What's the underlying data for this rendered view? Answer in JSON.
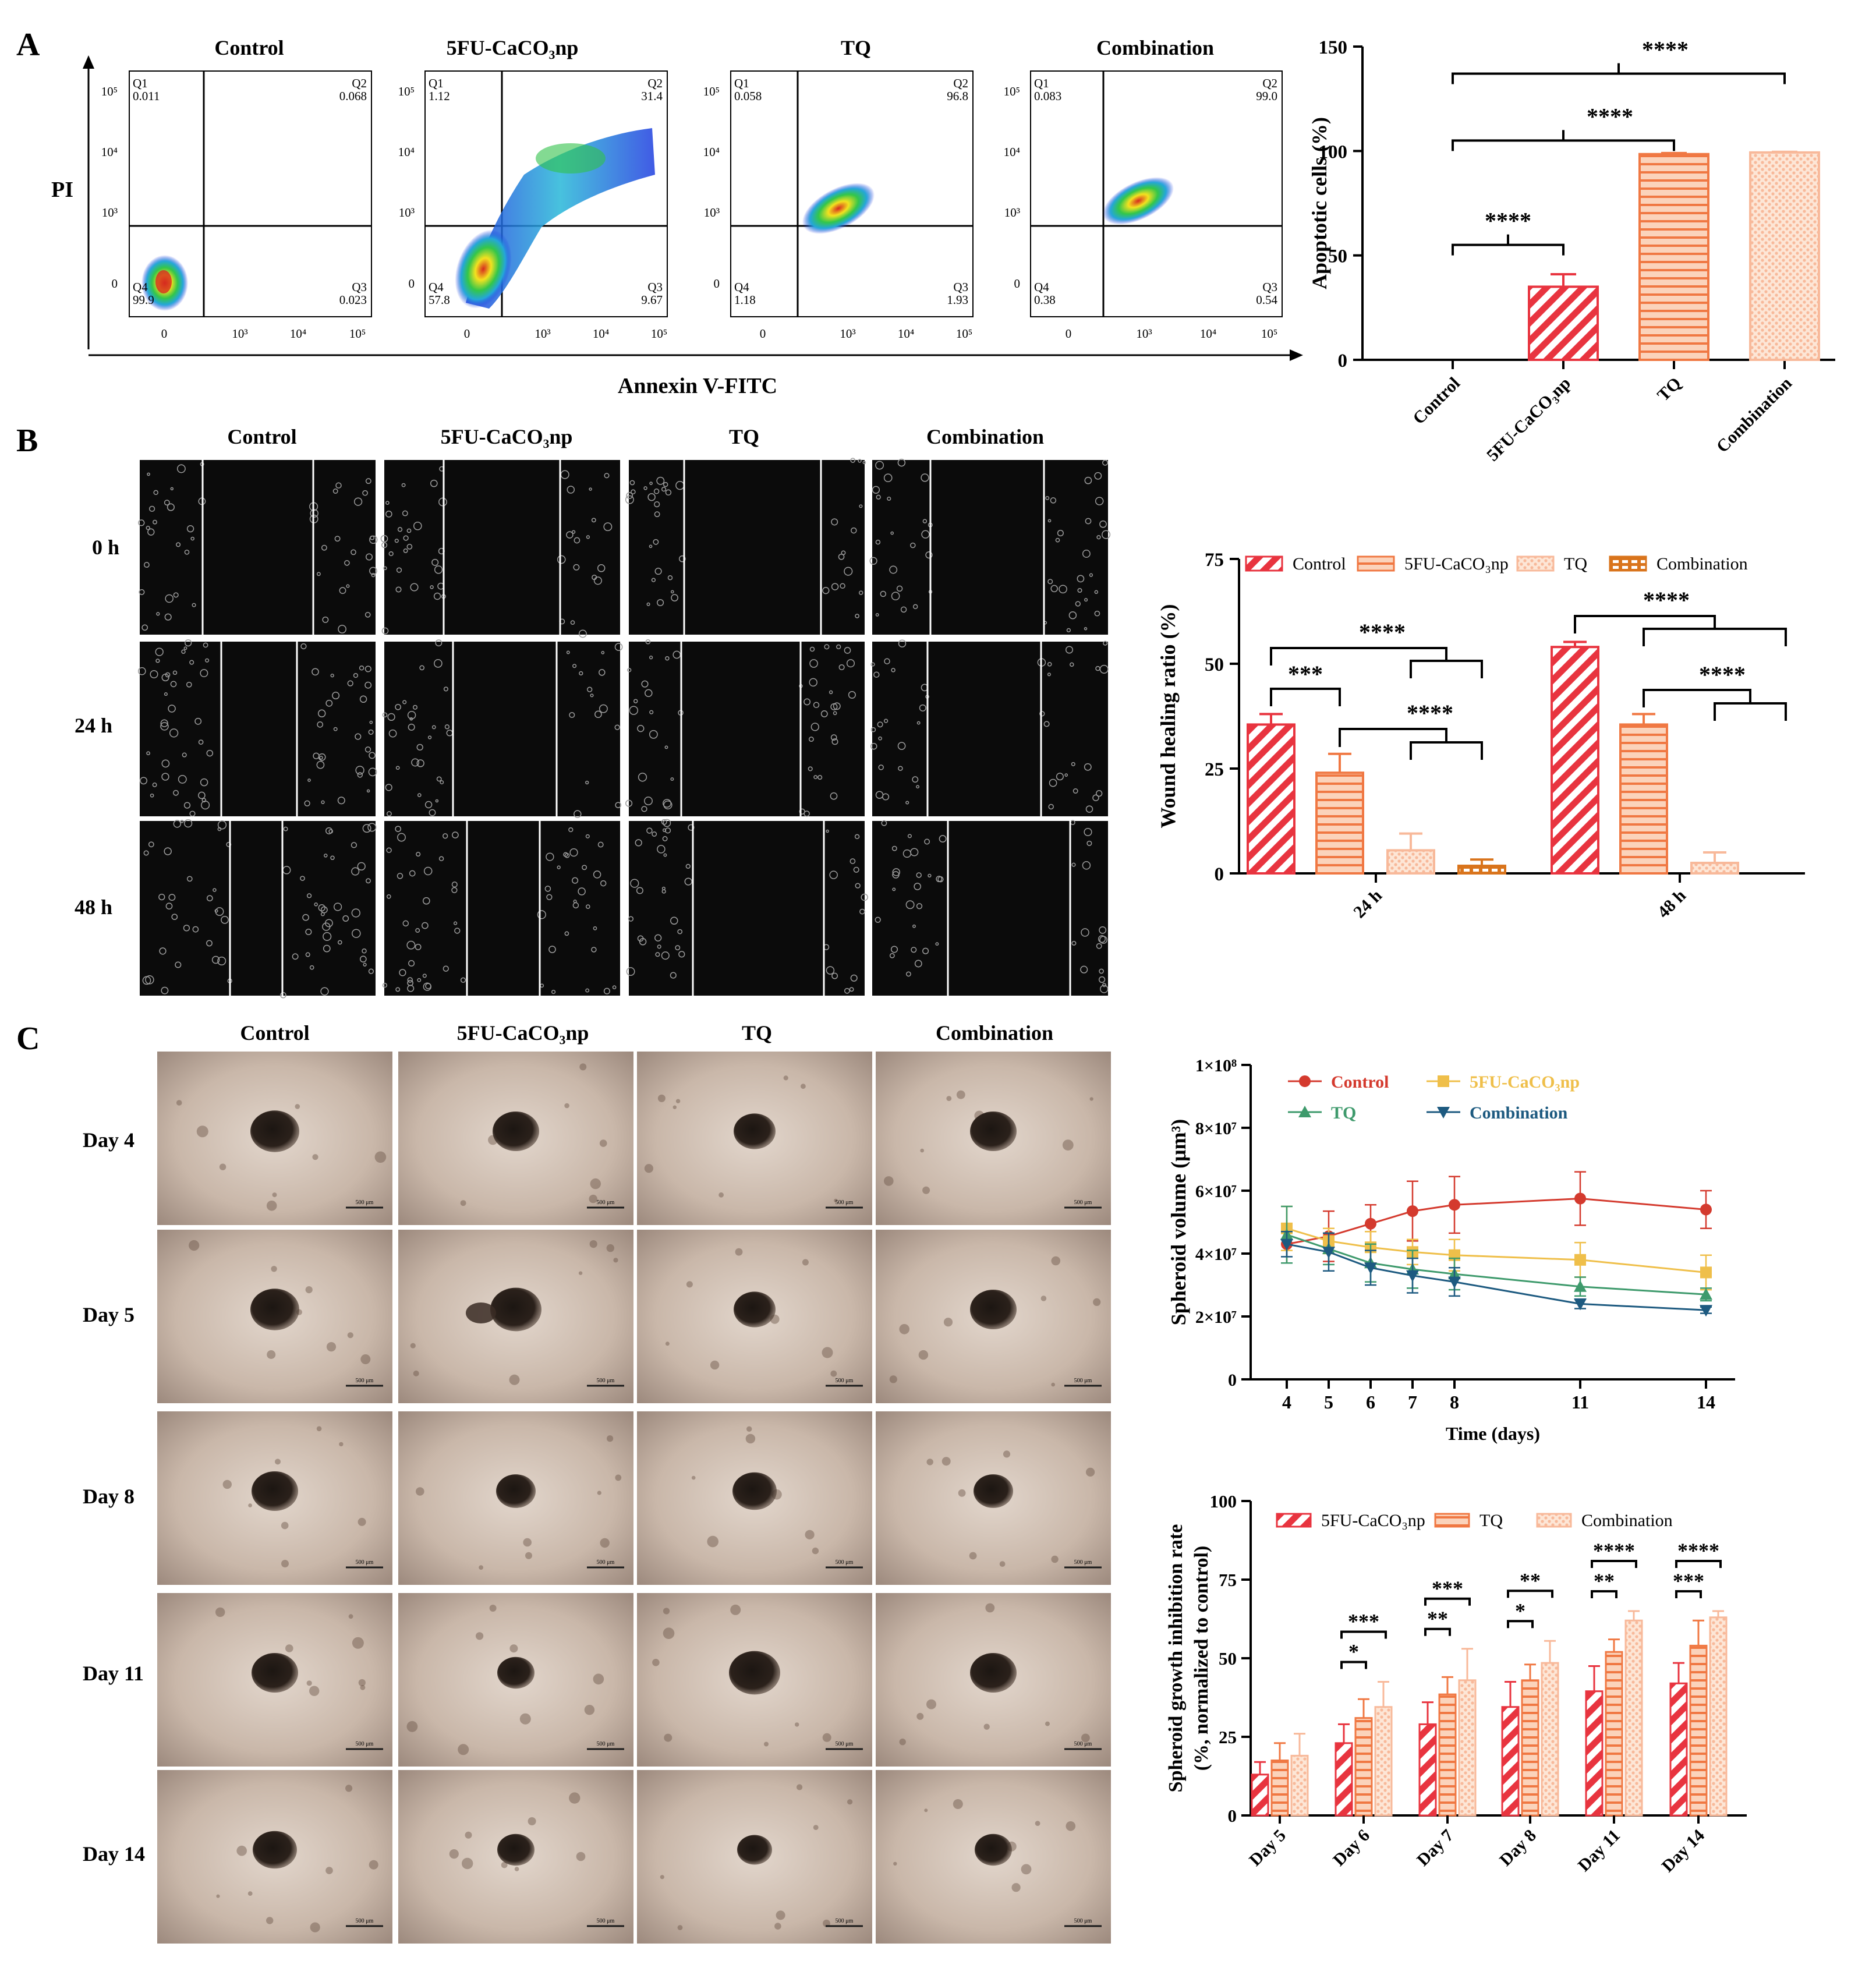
{
  "panels": {
    "A": "A",
    "B": "B",
    "C": "C"
  },
  "colors": {
    "c_control": "#e8343f",
    "c_5fu": "#f07843",
    "c_tq": "#f8b99a",
    "c_comb": "#f8c7a8",
    "c_comb_b": "#d9741c",
    "line_control": "#d43a2e",
    "line_5fu": "#efbf4a",
    "line_tq": "#3e9a6c",
    "line_comb": "#1d5a80"
  },
  "flow": {
    "titles": [
      "Control",
      "5FU-CaCO₃np",
      "TQ",
      "Combination"
    ],
    "y_axis_label": "PI",
    "x_axis_label": "Annexin V-FITC",
    "x_ticks": [
      "0",
      "10³",
      "10⁴",
      "10⁵"
    ],
    "y_ticks": [
      "0",
      "10³",
      "10⁴",
      "10⁵"
    ],
    "quadrants": [
      {
        "q1": "Q1",
        "q1v": "0.011",
        "q2": "Q2",
        "q2v": "0.068",
        "q3": "Q3",
        "q3v": "0.023",
        "q4": "Q4",
        "q4v": "99.9"
      },
      {
        "q1": "Q1",
        "q1v": "1.12",
        "q2": "Q2",
        "q2v": "31.4",
        "q3": "Q3",
        "q3v": "9.67",
        "q4": "Q4",
        "q4v": "57.8"
      },
      {
        "q1": "Q1",
        "q1v": "0.058",
        "q2": "Q2",
        "q2v": "96.8",
        "q3": "Q3",
        "q3v": "1.93",
        "q4": "Q4",
        "q4v": "1.18"
      },
      {
        "q1": "Q1",
        "q1v": "0.083",
        "q2": "Q2",
        "q2v": "99.0",
        "q3": "Q3",
        "q3v": "0.54",
        "q4": "Q4",
        "q4v": "0.38"
      }
    ]
  },
  "micro": {
    "b_titles": [
      "Control",
      "5FU-CaCO₃np",
      "TQ",
      "Combination"
    ],
    "b_rows": [
      "0 h",
      "24 h",
      "48 h"
    ],
    "c_titles": [
      "Control",
      "5FU-CaCO₃np",
      "TQ",
      "Combination"
    ],
    "c_rows": [
      "Day 4",
      "Day 5",
      "Day 8",
      "Day 11",
      "Day 14"
    ],
    "scale_label": "500 μm"
  },
  "chart_data": [
    {
      "type": "bar",
      "categories": [
        "Control",
        "5FU-CaCO₃np",
        "TQ",
        "Combination"
      ],
      "values": [
        0,
        35,
        98.5,
        99.3
      ],
      "errors": [
        0,
        6,
        0.5,
        0.3
      ],
      "ylabel": "Apoptotic cells (%)",
      "ylim": [
        0,
        150
      ],
      "yticks": [
        "0",
        "50",
        "100",
        "150"
      ],
      "significance": [
        "****",
        "****",
        "****"
      ]
    },
    {
      "type": "bar",
      "categories": [
        "24 h",
        "48 h"
      ],
      "series": [
        {
          "name": "Control",
          "values": [
            35.5,
            54
          ],
          "errors": [
            2.5,
            1.2
          ]
        },
        {
          "name": "5FU-CaCO₃np",
          "values": [
            24,
            35.5
          ],
          "errors": [
            4.5,
            2.5
          ]
        },
        {
          "name": "TQ",
          "values": [
            5.5,
            2.5
          ],
          "errors": [
            4,
            2.5
          ]
        },
        {
          "name": "Combination",
          "values": [
            1.8,
            0
          ],
          "errors": [
            1.5,
            0
          ]
        }
      ],
      "ylabel": "Wound healing ratio (%)",
      "ylim": [
        0,
        75
      ],
      "yticks": [
        "0",
        "25",
        "50",
        "75"
      ],
      "significance": [
        "***",
        "****",
        "****",
        "****",
        "****"
      ]
    },
    {
      "type": "line",
      "x": [
        4,
        5,
        6,
        7,
        8,
        11,
        14
      ],
      "series": [
        {
          "name": "Control",
          "values": [
            43,
            45.5,
            49.5,
            53.5,
            55.5,
            57.5,
            54
          ],
          "errors": [
            6,
            8,
            6,
            9.5,
            9,
            8.5,
            6
          ]
        },
        {
          "name": "5FU-CaCO₃np",
          "values": [
            48,
            44,
            42,
            40.5,
            39.5,
            38,
            34
          ],
          "errors": [
            7,
            4,
            5,
            4,
            5,
            5.5,
            5.5
          ]
        },
        {
          "name": "TQ",
          "values": [
            46,
            41.5,
            37,
            35,
            33.5,
            29.5,
            27
          ],
          "errors": [
            9,
            5,
            6,
            6,
            5,
            3,
            2
          ]
        },
        {
          "name": "Combination",
          "values": [
            43,
            40.5,
            35.5,
            33,
            31,
            24,
            22
          ],
          "errors": [
            4,
            6,
            5.5,
            5.5,
            4.5,
            1.5,
            1
          ]
        }
      ],
      "xlabel": "Time (days)",
      "ylabel": "Spheroid volume (μm³)",
      "xticks": [
        "4",
        "5",
        "6",
        "7",
        "8",
        "11",
        "14"
      ],
      "yticks": [
        "0",
        "2×10⁷",
        "4×10⁷",
        "6×10⁷",
        "8×10⁷",
        "1×10⁸"
      ],
      "ylim": [
        0,
        100
      ]
    },
    {
      "type": "bar",
      "categories": [
        "Day 5",
        "Day 6",
        "Day 7",
        "Day 8",
        "Day 11",
        "Day 14"
      ],
      "series": [
        {
          "name": "5FU-CaCO₃np",
          "values": [
            13,
            23,
            29,
            34.5,
            39.5,
            42
          ],
          "errors": [
            4,
            6,
            7,
            8,
            8,
            6.5
          ]
        },
        {
          "name": "TQ",
          "values": [
            17.5,
            31,
            38.5,
            43,
            52,
            54
          ],
          "errors": [
            5.5,
            6,
            5.5,
            5,
            4,
            8
          ]
        },
        {
          "name": "Combination",
          "values": [
            19,
            34.5,
            43,
            48.5,
            62,
            63
          ],
          "errors": [
            7,
            8,
            10,
            7,
            3,
            2
          ]
        }
      ],
      "ylabel": "Spheroid growth inhibition rate",
      "ylabel2": "(%, normalized to control)",
      "ylim": [
        0,
        100
      ],
      "yticks": [
        "0",
        "25",
        "50",
        "75",
        "100"
      ],
      "significance": [
        {
          "day": 1,
          "short": "*",
          "long": "***"
        },
        {
          "day": 2,
          "short": "**",
          "long": "***"
        },
        {
          "day": 3,
          "short": "*",
          "long": "**"
        },
        {
          "day": 4,
          "short": "**",
          "long": "****"
        },
        {
          "day": 5,
          "short": "***",
          "long": "****"
        }
      ]
    }
  ]
}
